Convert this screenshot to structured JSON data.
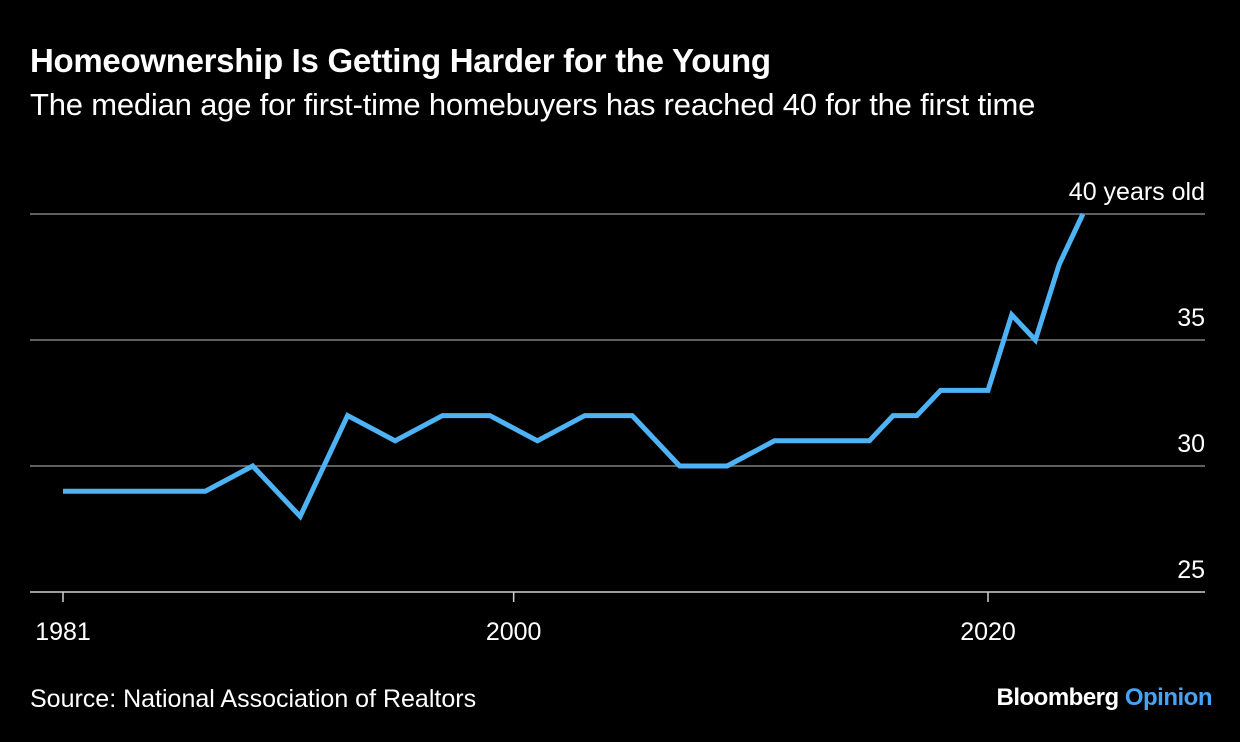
{
  "title": "Homeownership Is Getting Harder for the Young",
  "subtitle": "The median age for first-time homebuyers has reached 40 for the first time",
  "source": "Source: National Association of Realtors",
  "brand": {
    "name": "Bloomberg",
    "product": "Opinion",
    "product_color": "#47a4f5"
  },
  "colors": {
    "background": "#000000",
    "line": "#4db3f5",
    "grid": "#808080",
    "text": "#ffffff"
  },
  "chart_data": {
    "type": "line",
    "title": "Homeownership Is Getting Harder for the Young",
    "subtitle": "The median age for first-time homebuyers has reached 40 for the first time",
    "xlabel": "",
    "ylabel": "",
    "xlim": [
      1981,
      2029
    ],
    "ylim": [
      25,
      40
    ],
    "y_axis_position": "right",
    "x_ticks": [
      1981,
      2000,
      2020
    ],
    "y_ticks": [
      {
        "value": 25,
        "label": "25"
      },
      {
        "value": 30,
        "label": "30"
      },
      {
        "value": 35,
        "label": "35"
      },
      {
        "value": 40,
        "label": "40 years old"
      }
    ],
    "grid": true,
    "series": [
      {
        "name": "",
        "x": [
          1981,
          1983,
          1985,
          1987,
          1989,
          1991,
          1993,
          1995,
          1997,
          1999,
          2001,
          2003,
          2005,
          2007,
          2009,
          2011,
          2013,
          2015,
          2016,
          2017,
          2018,
          2019,
          2020,
          2021,
          2022,
          2023,
          2024
        ],
        "y": [
          29,
          29,
          29,
          29,
          30,
          28,
          32,
          31,
          32,
          32,
          31,
          32,
          32,
          30,
          30,
          31,
          31,
          31,
          32,
          32,
          33,
          33,
          33,
          36,
          35,
          38,
          40
        ]
      }
    ]
  }
}
